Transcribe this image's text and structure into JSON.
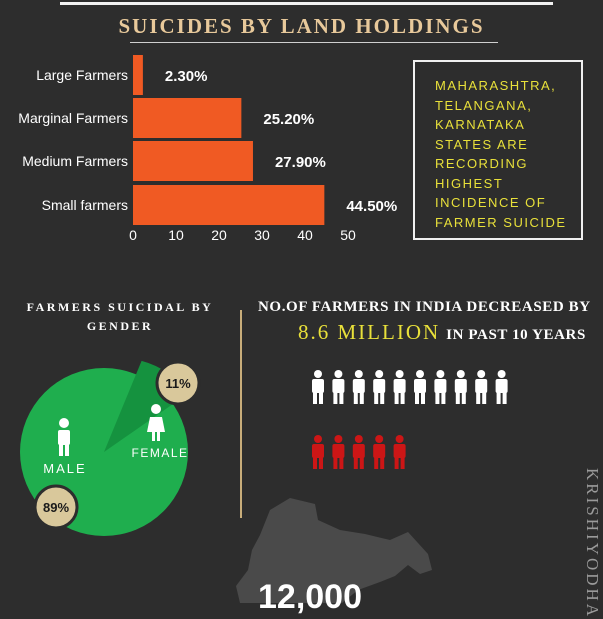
{
  "title": "SUICIDES BY LAND HOLDINGS",
  "chart_data": {
    "type": "bar",
    "orientation": "horizontal",
    "title": "SUICIDES BY LAND HOLDINGS",
    "categories": [
      "Large Farmers",
      "Marginal Farmers",
      "Medium Farmers",
      "Small farmers"
    ],
    "values": [
      2.3,
      25.2,
      27.9,
      44.5
    ],
    "data_labels": [
      "2.30%",
      "25.20%",
      "27.90%",
      "44.50%"
    ],
    "xlim": [
      0,
      50
    ],
    "x_ticks": [
      "0",
      "10",
      "20",
      "30",
      "40",
      "50"
    ],
    "bar_color": "#f05a23",
    "grid": false
  },
  "info_box": {
    "lines": [
      "MAHARASHTRA,",
      "TELANGANA,",
      "KARNATAKA",
      "STATES ARE",
      "RECORDING",
      "HIGHEST",
      "INCIDENCE OF",
      "FARMER SUICIDE"
    ],
    "highlight_color": "#e8e03a"
  },
  "gender": {
    "title_lines": [
      "FARMERS SUICIDAL BY",
      "GENDER"
    ],
    "male_label": "MALE",
    "female_label": "FEMALE",
    "male_pct_label": "89%",
    "female_pct_label": "11%",
    "male_value": 89,
    "female_value": 11,
    "pie_color": "#1fae4e",
    "slice_color": "#15923f",
    "badge_color": "#d9c89b"
  },
  "decline": {
    "line1": "NO.OF FARMERS IN INDIA DECREASED BY",
    "number": "8.6 MILLION",
    "suffix": "IN PAST 10 YEARS",
    "white_figures": 10,
    "red_figures": 5,
    "red_color": "#cc1616"
  },
  "map_number": "12,000",
  "brand": "KRISHIYODHA"
}
